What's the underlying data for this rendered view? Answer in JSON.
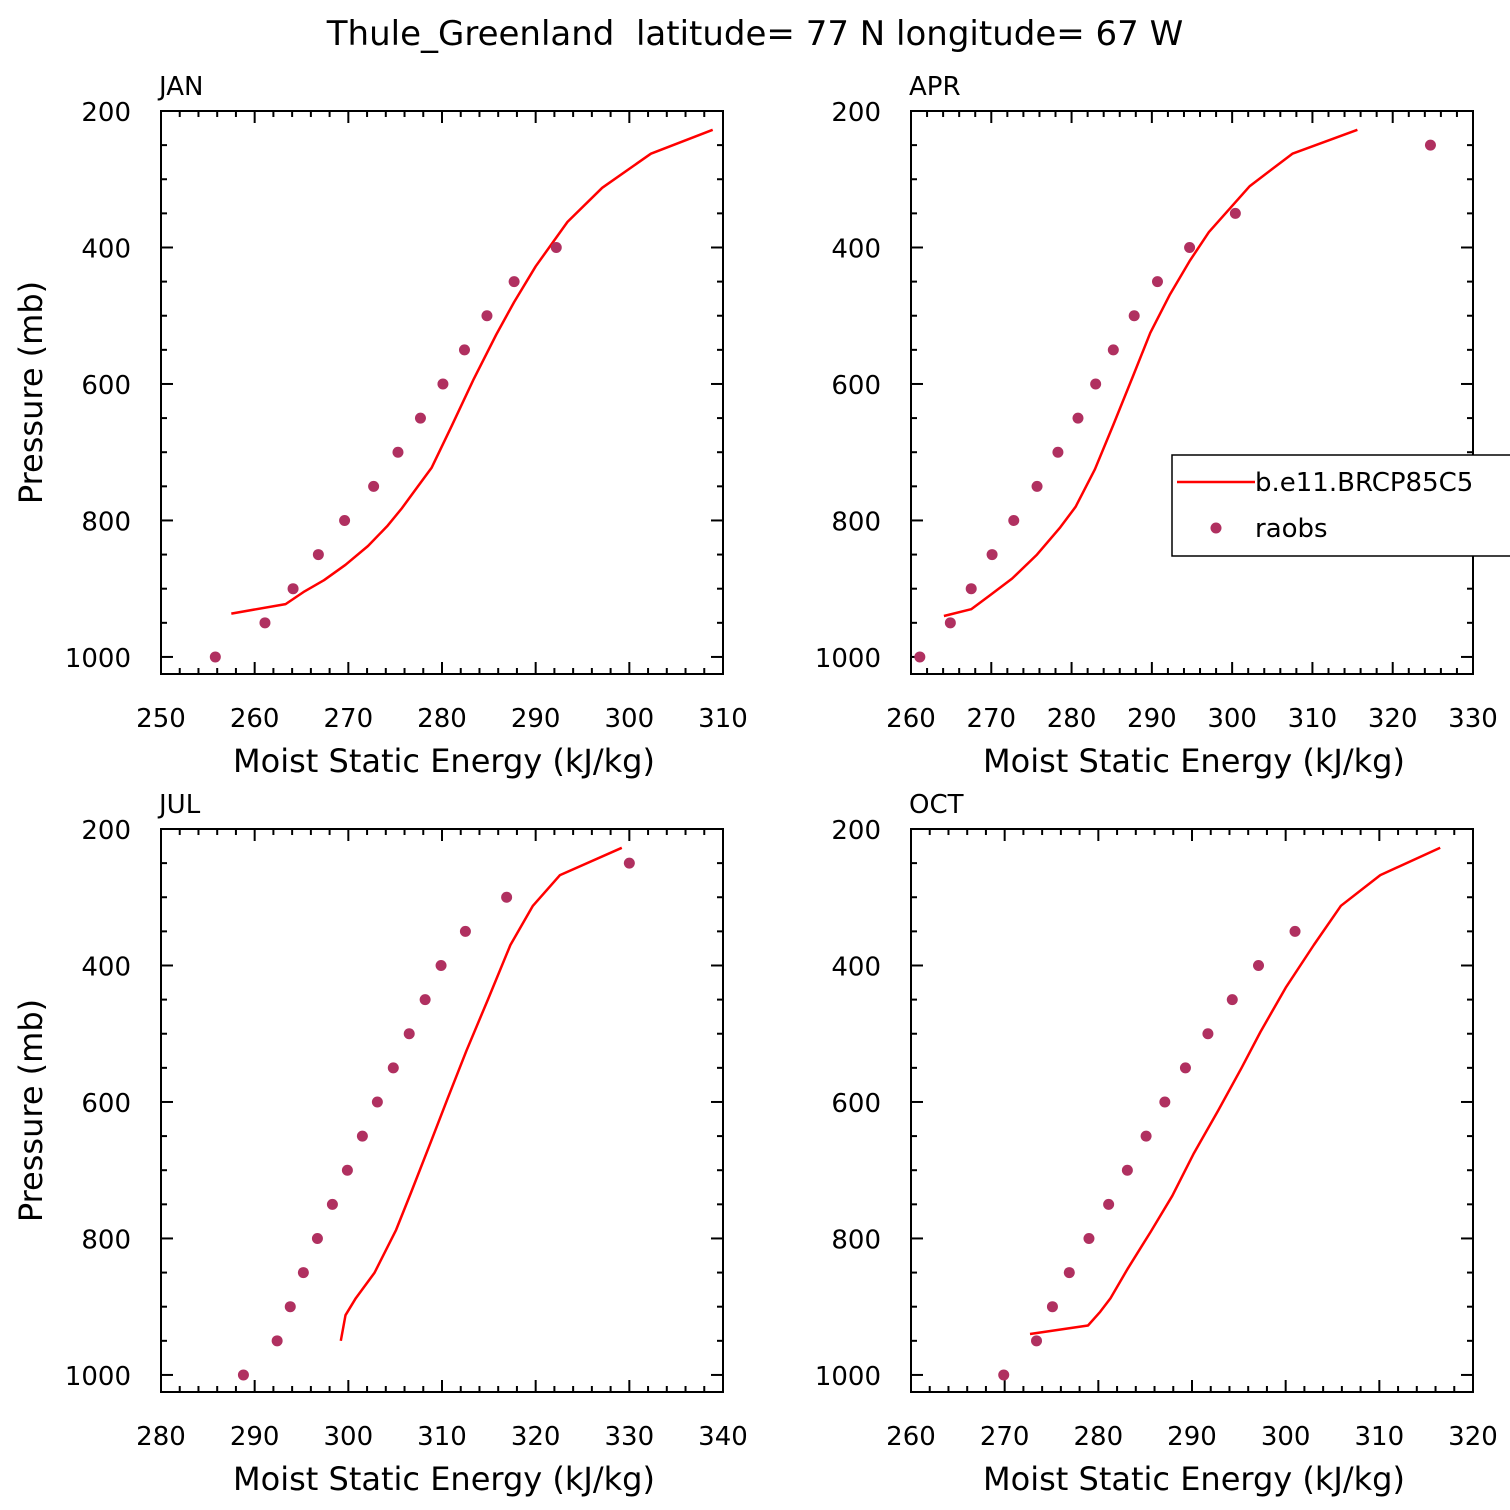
{
  "title": "Thule_Greenland  latitude= 77 N longitude= 67 W",
  "colors": {
    "model_line": "#ff0000",
    "obs_marker": "#b03060",
    "axes": "#000000"
  },
  "legend": {
    "placement": "right of APR panel (overlapping)",
    "entries": [
      {
        "label": "b.e11.BRCP85C5",
        "style": "line"
      },
      {
        "label": "raobs",
        "style": "marker"
      }
    ]
  },
  "chart_data": [
    {
      "type": "line",
      "panel_label": "JAN",
      "xlabel": "Moist Static Energy (kJ/kg)",
      "ylabel": "Pressure (mb)",
      "xlim": [
        250,
        310
      ],
      "ylim": [
        200,
        1025
      ],
      "y_inverted": true,
      "xticks": [
        250,
        260,
        270,
        280,
        290,
        300,
        310
      ],
      "yticks": [
        200,
        400,
        600,
        800,
        1000
      ],
      "series": [
        {
          "name": "b.e11.BRCP85C5",
          "style": "line",
          "x": [
            257.5,
            263.3,
            265.2,
            267.4,
            269.7,
            272.1,
            274.2,
            275.7,
            277.3,
            278.9,
            281.0,
            283.4,
            285.8,
            287.7,
            290.0,
            293.4,
            297.1,
            302.3,
            308.9
          ],
          "y": [
            936.5,
            922.5,
            905.0,
            887.5,
            865.0,
            837.5,
            807.5,
            782.5,
            752.5,
            722.5,
            662.5,
            592.5,
            527.5,
            480.0,
            427.5,
            362.5,
            312.5,
            262.5,
            227.5
          ]
        },
        {
          "name": "raobs",
          "style": "marker",
          "x": [
            255.8,
            261.1,
            264.1,
            266.8,
            269.6,
            272.7,
            275.3,
            277.7,
            280.1,
            282.4,
            284.8,
            287.7,
            292.2
          ],
          "y": [
            1000,
            950,
            900,
            850,
            800,
            750,
            700,
            650,
            600,
            550,
            500,
            450,
            400
          ]
        }
      ]
    },
    {
      "type": "line",
      "panel_label": "APR",
      "xlabel": "Moist Static Energy (kJ/kg)",
      "ylabel": "",
      "xlim": [
        260,
        330
      ],
      "ylim": [
        200,
        1025
      ],
      "y_inverted": true,
      "xticks": [
        260,
        270,
        280,
        290,
        300,
        310,
        320,
        330
      ],
      "yticks": [
        200,
        400,
        600,
        800,
        1000
      ],
      "series": [
        {
          "name": "b.e11.BRCP85C5",
          "style": "line",
          "x": [
            264.1,
            267.5,
            269.8,
            272.6,
            275.7,
            278.6,
            280.5,
            282.9,
            285.2,
            287.6,
            289.8,
            292.2,
            294.7,
            297.1,
            302.2,
            307.5,
            315.6
          ],
          "y": [
            940.0,
            930.0,
            910.0,
            885.0,
            850.0,
            810.0,
            780.0,
            725.0,
            660.0,
            590.0,
            525.0,
            470.0,
            420.0,
            377.5,
            310.0,
            262.5,
            227.5
          ]
        },
        {
          "name": "raobs",
          "style": "marker",
          "x": [
            261.1,
            264.9,
            267.5,
            270.1,
            272.8,
            275.7,
            278.3,
            280.8,
            283.0,
            285.2,
            287.8,
            290.7,
            294.7,
            300.4,
            324.7
          ],
          "y": [
            1000,
            950,
            900,
            850,
            800,
            750,
            700,
            650,
            600,
            550,
            500,
            450,
            400,
            350,
            250
          ]
        }
      ]
    },
    {
      "type": "line",
      "panel_label": "JUL",
      "xlabel": "Moist Static Energy (kJ/kg)",
      "ylabel": "Pressure (mb)",
      "xlim": [
        280,
        340
      ],
      "ylim": [
        200,
        1025
      ],
      "y_inverted": true,
      "xticks": [
        280,
        290,
        300,
        310,
        320,
        330,
        340
      ],
      "yticks": [
        200,
        400,
        600,
        800,
        1000
      ],
      "series": [
        {
          "name": "b.e11.BRCP85C5",
          "style": "line",
          "x": [
            299.2,
            299.7,
            300.8,
            302.8,
            305.1,
            306.7,
            308.7,
            310.6,
            312.6,
            314.9,
            317.3,
            319.7,
            322.6,
            329.2
          ],
          "y": [
            950.0,
            912.5,
            887.5,
            850.0,
            787.5,
            732.5,
            662.5,
            595.0,
            525.0,
            450.0,
            370.0,
            312.5,
            267.5,
            227.5
          ]
        },
        {
          "name": "raobs",
          "style": "marker",
          "x": [
            288.8,
            292.4,
            293.8,
            295.2,
            296.7,
            298.3,
            299.9,
            301.5,
            303.1,
            304.8,
            306.5,
            308.2,
            309.9,
            312.5,
            316.9,
            330.0
          ],
          "y": [
            1000,
            950,
            900,
            850,
            800,
            750,
            700,
            650,
            600,
            550,
            500,
            450,
            400,
            350,
            300,
            250
          ]
        }
      ]
    },
    {
      "type": "line",
      "panel_label": "OCT",
      "xlabel": "Moist Static Energy (kJ/kg)",
      "ylabel": "",
      "xlim": [
        260,
        320
      ],
      "ylim": [
        200,
        1025
      ],
      "y_inverted": true,
      "xticks": [
        260,
        270,
        280,
        290,
        300,
        310,
        320
      ],
      "yticks": [
        200,
        400,
        600,
        800,
        1000
      ],
      "series": [
        {
          "name": "b.e11.BRCP85C5",
          "style": "line",
          "x": [
            272.7,
            278.9,
            280.2,
            281.3,
            283.1,
            285.6,
            287.9,
            290.2,
            292.8,
            295.3,
            297.3,
            300.0,
            303.0,
            305.9,
            310.1,
            316.5
          ],
          "y": [
            940.0,
            927.5,
            907.5,
            887.5,
            845.0,
            790.0,
            737.5,
            675.0,
            612.5,
            550.0,
            497.5,
            432.5,
            370.0,
            312.5,
            267.5,
            227.5
          ]
        },
        {
          "name": "raobs",
          "style": "marker",
          "x": [
            269.9,
            273.4,
            275.1,
            276.9,
            279.0,
            281.1,
            283.1,
            285.1,
            287.1,
            289.3,
            291.7,
            294.3,
            297.1,
            301.0
          ],
          "y": [
            1000,
            950,
            900,
            850,
            800,
            750,
            700,
            650,
            600,
            550,
            500,
            450,
            400,
            350
          ]
        }
      ]
    }
  ]
}
